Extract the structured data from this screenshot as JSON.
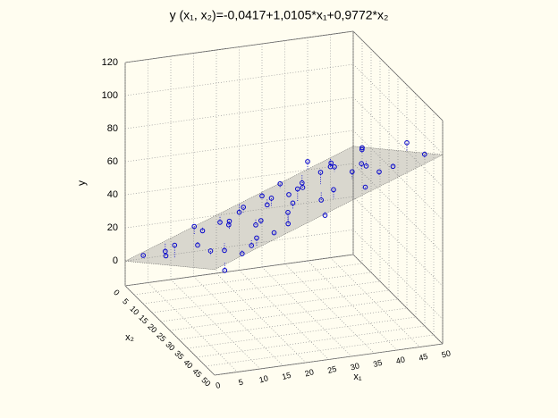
{
  "chart_data": {
    "type": "scatter3d",
    "title": "y (x₁, x₂)=-0,0417+1,0105*x₁+0,9772*x₂",
    "x1_label": "x₁",
    "x2_label": "x₂",
    "y_label": "y",
    "plane": {
      "intercept": -0.0417,
      "x1": 1.0105,
      "x2": 0.9772
    },
    "x1lim": [
      0,
      50
    ],
    "x1ticks": [
      0,
      5,
      10,
      15,
      20,
      25,
      30,
      35,
      40,
      45,
      50
    ],
    "x2lim": [
      0,
      50
    ],
    "x2ticks": [
      0,
      5,
      10,
      15,
      20,
      25,
      30,
      35,
      40,
      45,
      50
    ],
    "ylim": [
      -15,
      120
    ],
    "yticks": [
      0,
      20,
      40,
      60,
      80,
      100,
      120
    ],
    "grid": true,
    "color": "#0000cc",
    "x1": [
      2,
      3,
      5,
      5,
      8,
      8,
      10,
      10,
      12,
      12,
      15,
      15,
      15,
      18,
      18,
      20,
      20,
      20,
      22,
      22,
      25,
      25,
      25,
      25,
      28,
      28,
      30,
      30,
      32,
      32,
      35,
      35,
      35,
      38,
      38,
      40,
      40,
      42,
      42,
      45,
      45,
      45,
      48,
      48,
      50,
      50,
      3,
      10,
      30,
      40
    ],
    "x2": [
      5,
      20,
      10,
      35,
      2,
      45,
      15,
      30,
      8,
      40,
      20,
      5,
      45,
      12,
      30,
      2,
      22,
      40,
      10,
      35,
      0,
      18,
      30,
      48,
      8,
      25,
      15,
      40,
      5,
      28,
      20,
      45,
      10,
      2,
      30,
      15,
      40,
      8,
      25,
      0,
      20,
      35,
      10,
      45,
      5,
      30,
      48,
      48,
      0,
      0
    ],
    "y": [
      8,
      30,
      12,
      42,
      5,
      50,
      22,
      35,
      25,
      48,
      40,
      18,
      60,
      28,
      50,
      18,
      38,
      65,
      35,
      52,
      20,
      48,
      58,
      70,
      32,
      60,
      45,
      75,
      40,
      55,
      62,
      80,
      42,
      35,
      72,
      58,
      82,
      52,
      70,
      40,
      62,
      78,
      60,
      95,
      55,
      85,
      45,
      62,
      28,
      45
    ]
  }
}
